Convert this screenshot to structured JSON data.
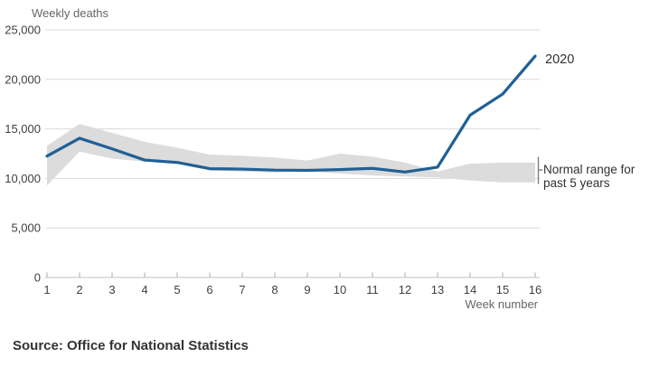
{
  "chart": {
    "y_axis_title": "Weekly deaths",
    "x_axis_title": "Week number",
    "line_label": "2020",
    "band_label_line1": "Normal range for",
    "band_label_line2": "past 5 years",
    "source": "Source: Office for National Statistics"
  },
  "chart_data": {
    "type": "line",
    "title": "Weekly deaths",
    "xlabel": "Week number",
    "ylabel": "Weekly deaths",
    "x": [
      1,
      2,
      3,
      4,
      5,
      6,
      7,
      8,
      9,
      10,
      11,
      12,
      13,
      14,
      15,
      16
    ],
    "xtick_labels": [
      "1",
      "2",
      "3",
      "4",
      "5",
      "6",
      "7",
      "8",
      "9",
      "10",
      "11",
      "12",
      "13",
      "14",
      "15",
      "16"
    ],
    "ylim": [
      0,
      25000
    ],
    "yticks": [
      0,
      5000,
      10000,
      15000,
      20000,
      25000
    ],
    "ytick_labels": [
      "0",
      "5,000",
      "10,000",
      "15,000",
      "20,000",
      "25,000"
    ],
    "grid": true,
    "legend_position": "end-of-line annotations",
    "series": [
      {
        "name": "2020",
        "type": "line",
        "color": "#206095",
        "values": [
          12254,
          14058,
          12990,
          11856,
          11612,
          10986,
          10944,
          10841,
          10816,
          10895,
          11019,
          10645,
          11141,
          16387,
          18516,
          22351
        ]
      },
      {
        "name": "Normal range for past 5 years",
        "type": "band",
        "color": "#dcdcdc",
        "min": [
          9300,
          12700,
          12000,
          11700,
          11500,
          10800,
          10700,
          10600,
          10700,
          10500,
          10300,
          10200,
          10100,
          9800,
          9600,
          9600
        ],
        "max": [
          13300,
          15500,
          14600,
          13700,
          13100,
          12400,
          12300,
          12100,
          11800,
          12500,
          12200,
          11600,
          10700,
          11500,
          11600,
          11600
        ]
      }
    ],
    "source": "Source: Office for National Statistics"
  },
  "colors": {
    "line_2020": "#206095",
    "band": "#dcdcdc",
    "gridline": "#dadada",
    "axis_line": "#c2c2c2",
    "tick": "#a8a8a8",
    "text_dark": "#404040",
    "text_gray": "#666666",
    "bracket": "#808080"
  }
}
